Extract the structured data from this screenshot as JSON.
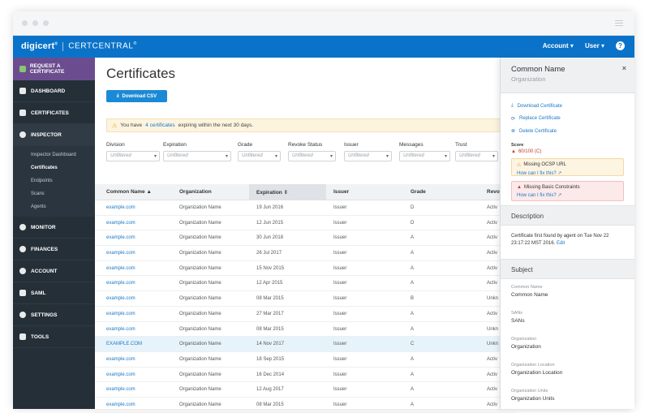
{
  "topbar": {
    "brand": "digicert",
    "brand_mark": "®",
    "product": "CERTCENTRAL",
    "product_mark": "®",
    "account": "Account",
    "user": "User",
    "help": "?"
  },
  "sidebar": {
    "request": "REQUEST A CERTIFICATE",
    "items_top": [
      "DASHBOARD",
      "CERTIFICATES",
      "INSPECTOR"
    ],
    "inspector_subitems": [
      "Inspector Dashboard",
      "Certificates",
      "Endpoints",
      "Scans",
      "Agents"
    ],
    "items_bottom": [
      "MONITOR",
      "FINANCES",
      "ACCOUNT",
      "SAML",
      "SETTINGS",
      "TOOLS"
    ]
  },
  "main": {
    "title": "Certificates",
    "download_csv": "Download CSV",
    "alert": {
      "before": "You have",
      "link": "4 certificates",
      "after": "expiring within the next 30 days."
    },
    "filters": [
      {
        "label": "Division",
        "value": "Unfiltered"
      },
      {
        "label": "Expiration",
        "value": "Unfiltered"
      },
      {
        "label": "Grade",
        "value": "Unfiltered"
      },
      {
        "label": "Revoke Status",
        "value": "Unfiltered"
      },
      {
        "label": "Issuer",
        "value": "Unfiltered"
      },
      {
        "label": "Messages",
        "value": "Unfiltered"
      },
      {
        "label": "Trust",
        "value": "Unfiltered"
      }
    ],
    "columns": {
      "common_name": "Common Name ▲",
      "organization": "Organization",
      "expiration": "Expiration ⇕",
      "issuer": "Issuer",
      "grade": "Grade",
      "revoke": "Revo"
    },
    "rows": [
      {
        "cn": "example.com",
        "org": "Organization Name",
        "exp": "19 Jun 2016",
        "issuer": "Issuer",
        "grade": "D",
        "rev": "Activ"
      },
      {
        "cn": "example.com",
        "org": "Organization Name",
        "exp": "12 Jun 2015",
        "issuer": "Issuer",
        "grade": "D",
        "rev": "Activ"
      },
      {
        "cn": "example.com",
        "org": "Organization Name",
        "exp": "30 Jun 2018",
        "issuer": "Issuer",
        "grade": "A",
        "rev": "Activ"
      },
      {
        "cn": "example.com",
        "org": "Organization Name",
        "exp": "26 Jul 2017",
        "issuer": "Issuer",
        "grade": "A",
        "rev": "Activ"
      },
      {
        "cn": "example.com",
        "org": "Organization Name",
        "exp": "15 Nov 2015",
        "issuer": "Issuer",
        "grade": "A",
        "rev": "Activ"
      },
      {
        "cn": "example.com",
        "org": "Organization Name",
        "exp": "12 Apr 2015",
        "issuer": "Issuer",
        "grade": "A",
        "rev": "Activ"
      },
      {
        "cn": "example.com",
        "org": "Organization Name",
        "exp": "08 Mar 2015",
        "issuer": "Issuer",
        "grade": "B",
        "rev": "Unkn"
      },
      {
        "cn": "example.com",
        "org": "Organization Name",
        "exp": "27 Mar 2017",
        "issuer": "Issuer",
        "grade": "A",
        "rev": "Activ"
      },
      {
        "cn": "example.com",
        "org": "Organization Name",
        "exp": "08 Mar 2015",
        "issuer": "Issuer",
        "grade": "A",
        "rev": "Unkn"
      },
      {
        "cn": "EXAMPLE.COM",
        "org": "Organization Name",
        "exp": "14 Nov 2017",
        "issuer": "Issuer",
        "grade": "C",
        "rev": "Unkn"
      },
      {
        "cn": "example.com",
        "org": "Organization Name",
        "exp": "18 Sep 2015",
        "issuer": "Issuer",
        "grade": "A",
        "rev": "Activ"
      },
      {
        "cn": "example.com",
        "org": "Organization Name",
        "exp": "16 Dec 2014",
        "issuer": "Issuer",
        "grade": "A",
        "rev": "Activ"
      },
      {
        "cn": "example.com",
        "org": "Organization Name",
        "exp": "12 Aug 2017",
        "issuer": "Issuer",
        "grade": "A",
        "rev": "Activ"
      },
      {
        "cn": "example.com",
        "org": "Organization Name",
        "exp": "08 Mar 2015",
        "issuer": "Issuer",
        "grade": "A",
        "rev": "Activ"
      }
    ]
  },
  "panel": {
    "title": "Common Name",
    "subtitle": "Organization",
    "close": "×",
    "actions": [
      "Download Certificate",
      "Replace Certificate",
      "Delete Certificate"
    ],
    "score_label": "Score",
    "score_value": "60/100 (C)",
    "issue_warn": "Missing OCSP URL",
    "issue_err": "Missing Basic Constraints",
    "fix_link": "How can I fix this?",
    "description_title": "Description",
    "description_text": "Certificate first found by agent on Tue Nov 22 23:17:22 MST 2016.",
    "edit": "Edit",
    "subject_title": "Subject",
    "fields": [
      {
        "label": "Common Name",
        "value": "Common Name"
      },
      {
        "label": "SANs",
        "value": "SANs"
      },
      {
        "label": "Organization",
        "value": "Organization"
      },
      {
        "label": "Organization Location",
        "value": "Organization Location"
      },
      {
        "label": "Organization Units",
        "value": "Organization Units"
      }
    ]
  },
  "colors": {
    "topbar": "#0a73c9",
    "sidebar": "#252f38",
    "request": "#6b4d8f",
    "link": "#1b78c8",
    "error": "#c0392b"
  }
}
